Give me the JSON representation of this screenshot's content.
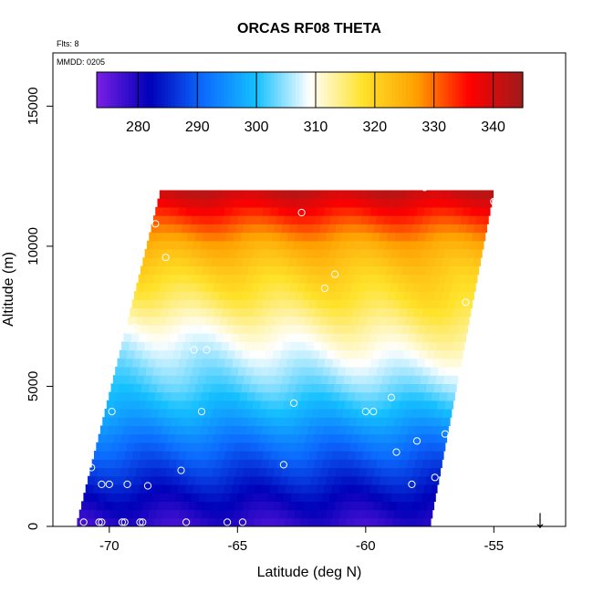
{
  "chart_data": {
    "type": "heatmap",
    "title": "ORCAS RF08 THETA",
    "subtitle": "Flts: 8",
    "date_label": "MMDD: 0205",
    "xlabel": "Latitude (deg N)",
    "ylabel": "Altitude (m)",
    "xlim": [
      -72.2,
      -52.2
    ],
    "ylim": [
      0,
      16900
    ],
    "x_ticks": [
      -70,
      -65,
      -60,
      -55
    ],
    "y_ticks": [
      0,
      5000,
      10000,
      15000
    ],
    "colorbar": {
      "range": [
        273,
        345
      ],
      "ticks": [
        280,
        290,
        300,
        310,
        320,
        330,
        340
      ],
      "colors": [
        "#7a1fe6",
        "#0000b8",
        "#0c6bff",
        "#15c0ff",
        "#ffffff",
        "#ffe22a",
        "#ffa000",
        "#ff0000",
        "#9c1c1c"
      ]
    },
    "domain": {
      "x_left_bottom": -71.3,
      "x_right_bottom": -57.5,
      "x_left_top": -68.0,
      "x_right_top": -55.0,
      "y_bottom": 0,
      "y_top": 12000
    },
    "theta_profile": {
      "altitude": [
        0,
        1000,
        2000,
        3000,
        4000,
        5000,
        6000,
        7000,
        8000,
        9000,
        10000,
        11000,
        12000
      ],
      "theta": [
        278,
        282,
        287,
        292,
        298,
        303,
        307,
        311,
        316,
        320,
        325,
        333,
        342
      ]
    },
    "flight_points": {
      "lat": [
        -71.0,
        -70.4,
        -70.3,
        -69.5,
        -69.4,
        -68.8,
        -68.7,
        -67.0,
        -65.4,
        -64.8,
        -71.0,
        -70.7,
        -70.3,
        -70.0,
        -69.3,
        -68.5,
        -67.2,
        -66.4,
        -63.2,
        -59.7,
        -58.8,
        -58.0,
        -58.2,
        -57.3,
        -56.9,
        -70.4,
        -69.9,
        -66.7,
        -62.8,
        -60.0,
        -59.0,
        -66.2,
        -69.0,
        -62.2,
        -61.6,
        -61.2,
        -56.1,
        -62.5,
        -67.8,
        -68.2,
        -57.7,
        -55.0
      ],
      "alt": [
        150,
        150,
        150,
        150,
        150,
        150,
        150,
        150,
        150,
        150,
        1900,
        2100,
        1500,
        1500,
        1500,
        1450,
        2000,
        4100,
        2200,
        4100,
        2650,
        3050,
        1500,
        1750,
        3300,
        4100,
        4100,
        6300,
        4400,
        4100,
        4600,
        6300,
        7100,
        6600,
        8500,
        9000,
        8000,
        11200,
        9600,
        10800,
        12100,
        11600
      ]
    },
    "grid": false,
    "legend": "top-colorbar"
  },
  "marker_label": "↓"
}
